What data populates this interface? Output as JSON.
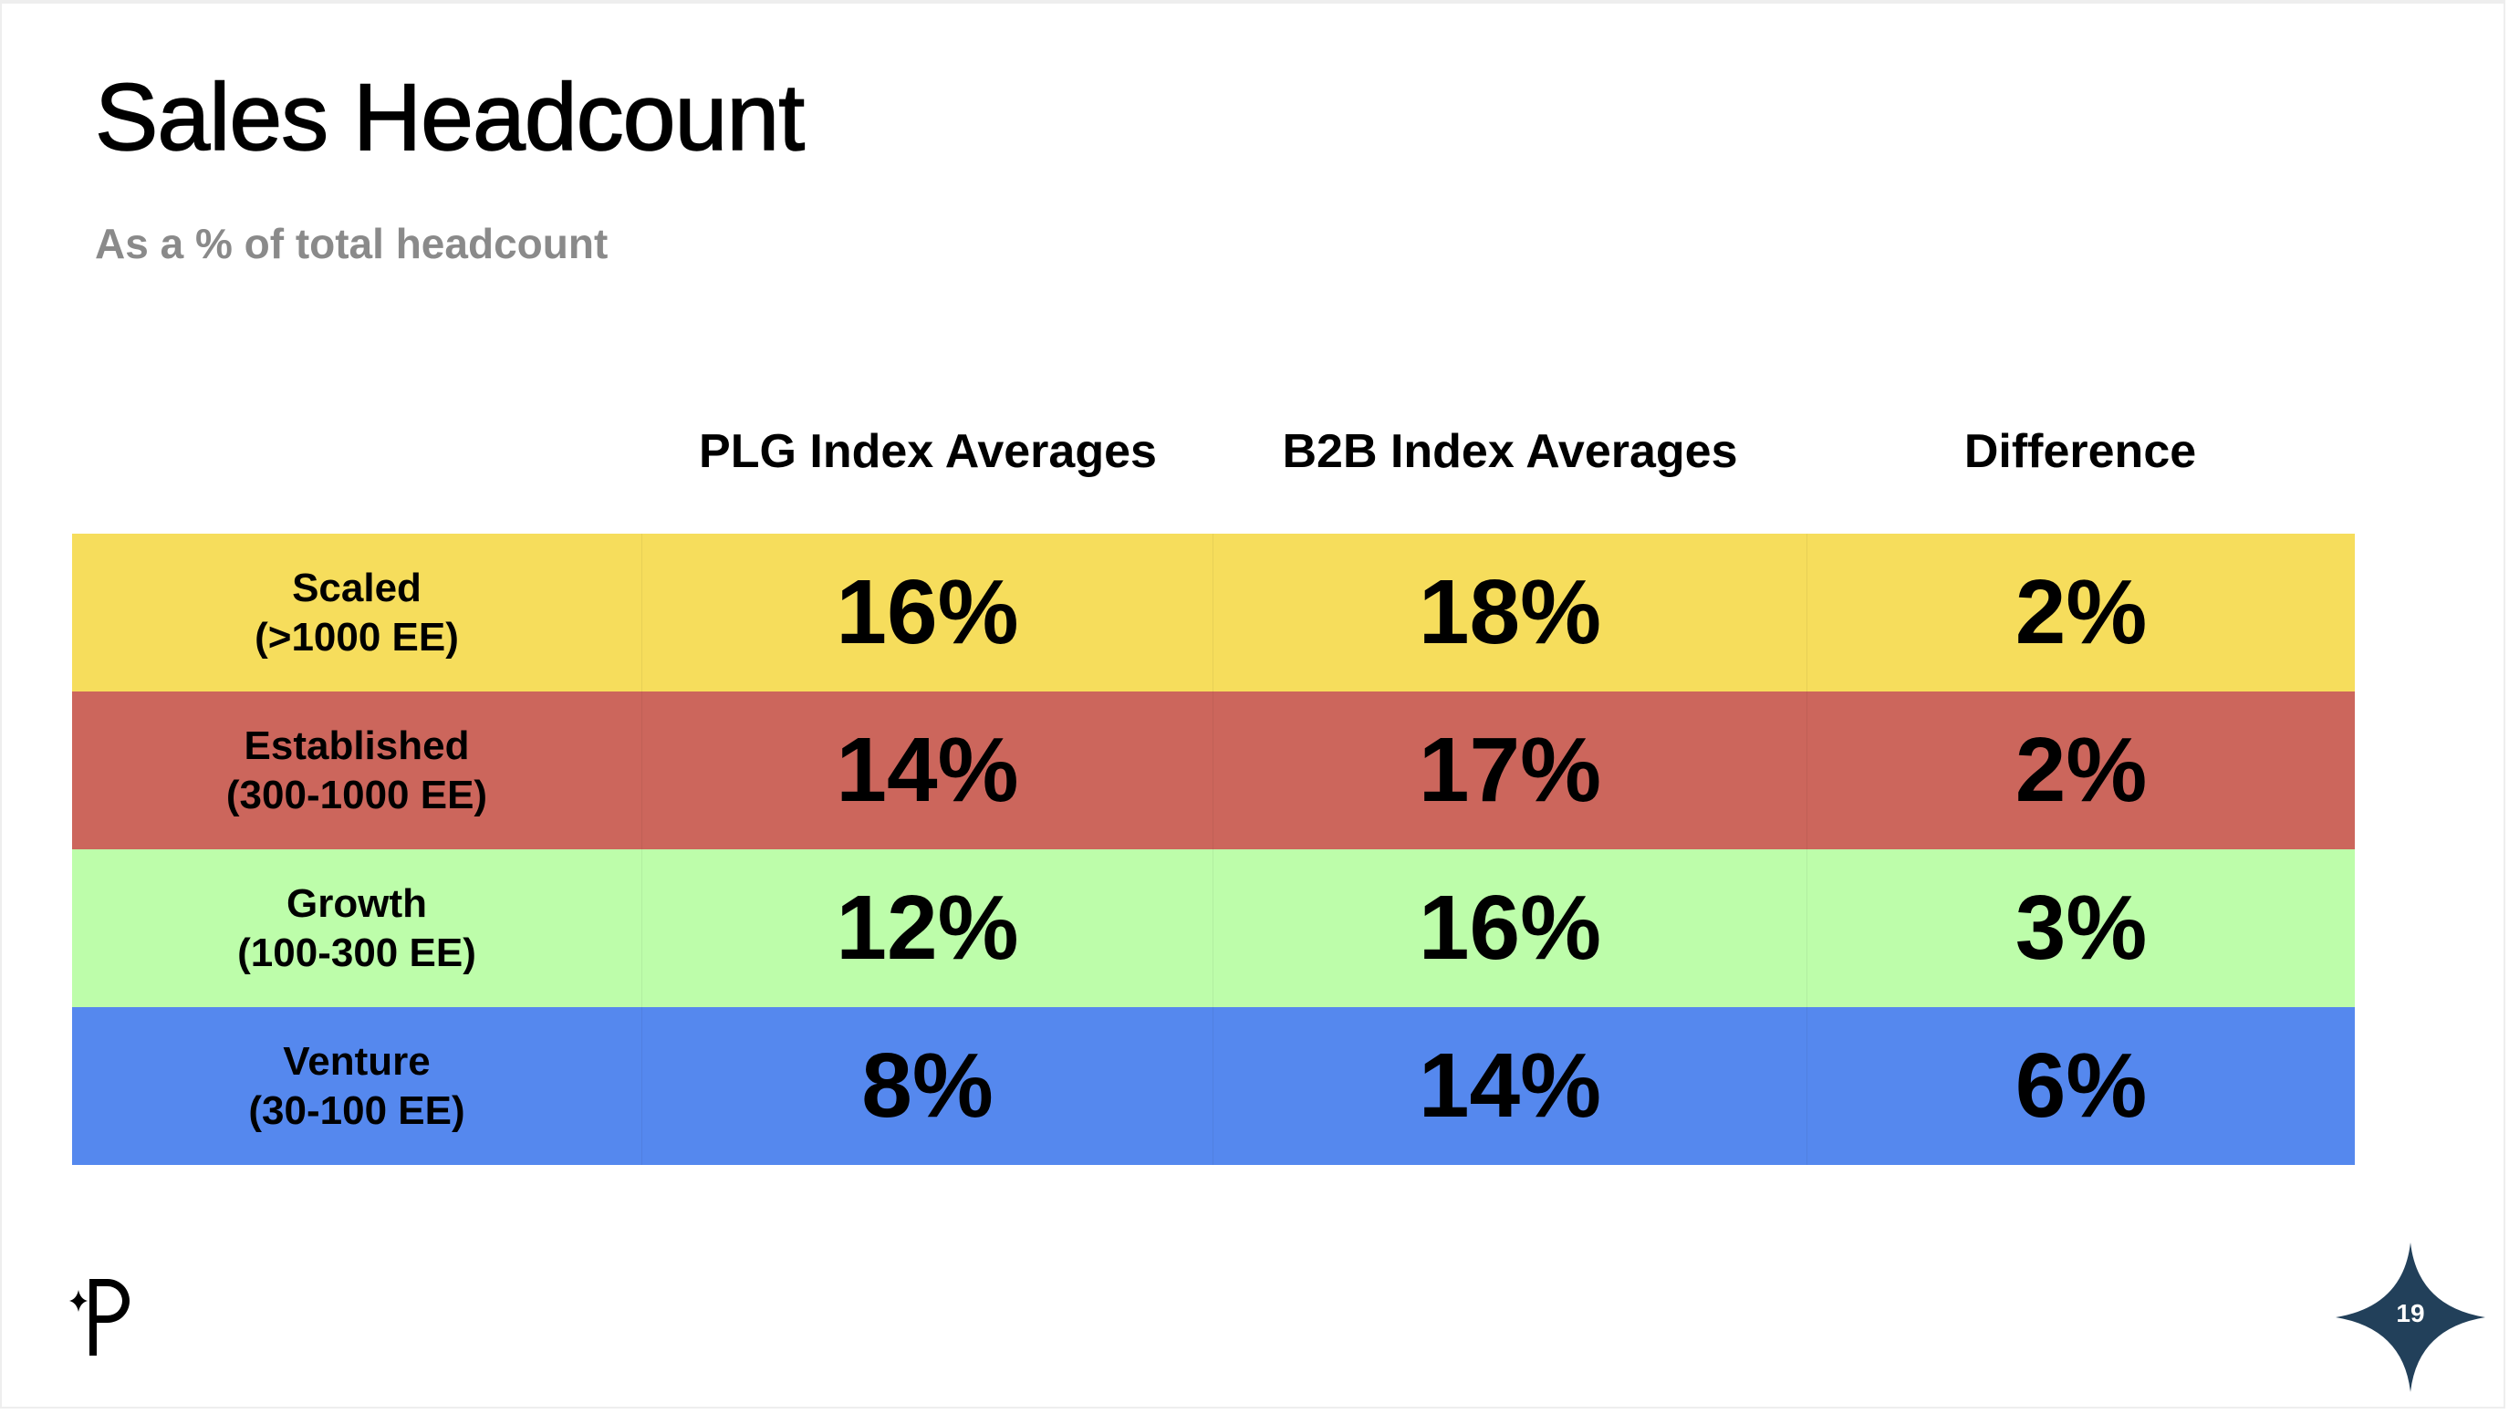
{
  "title": "Sales Headcount",
  "subtitle": "As a % of total headcount",
  "columns": [
    "PLG Index Averages",
    "B2B Index Averages",
    "Difference"
  ],
  "rows": [
    {
      "name": "Scaled",
      "range": "(>1000 EE)",
      "plg": "16%",
      "b2b": "18%",
      "diff": "2%",
      "color": "#F6DD5C"
    },
    {
      "name": "Established",
      "range": "(300-1000 EE)",
      "plg": "14%",
      "b2b": "17%",
      "diff": "2%",
      "color": "#CC665C"
    },
    {
      "name": "Growth",
      "range": "(100-300 EE)",
      "plg": "12%",
      "b2b": "16%",
      "diff": "3%",
      "color": "#BDFDAA"
    },
    {
      "name": "Venture",
      "range": "(30-100 EE)",
      "plg": "8%",
      "b2b": "14%",
      "diff": "6%",
      "color": "#5588EE"
    }
  ],
  "page_number": "19",
  "star_color": "#22405A",
  "logo_icon": "p-sparkle-logo"
}
